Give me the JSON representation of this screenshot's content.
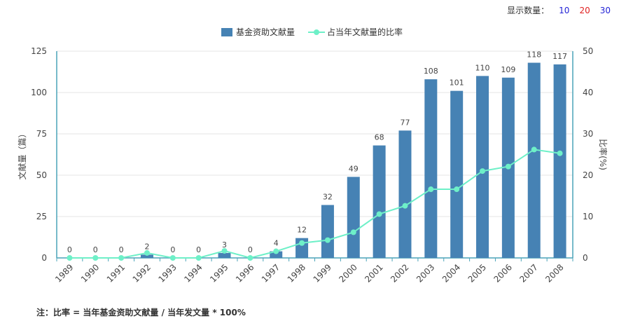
{
  "display_count": {
    "label": "显示数量：",
    "options": [
      "10",
      "20",
      "30"
    ]
  },
  "footnote": "注：比率 = 当年基金资助文献量 / 当年发文量 * 100%",
  "colors": {
    "bar": "#4682b4",
    "line": "#6ef0c8",
    "axis": "#4aa3b8",
    "grid": "#e6e6e6"
  },
  "chart_data": {
    "type": "bar",
    "categories": [
      "1989",
      "1990",
      "1991",
      "1992",
      "1993",
      "1994",
      "1995",
      "1996",
      "1997",
      "1998",
      "1999",
      "2000",
      "2001",
      "2002",
      "2003",
      "2004",
      "2005",
      "2006",
      "2007",
      "2008"
    ],
    "series": [
      {
        "name": "基金资助文献量",
        "type": "bar",
        "axis": "left",
        "values": [
          0,
          0,
          0,
          2,
          0,
          0,
          3,
          0,
          4,
          12,
          32,
          49,
          68,
          77,
          108,
          101,
          110,
          109,
          118,
          117
        ],
        "labels": [
          "0",
          "0",
          "0",
          "2",
          "0",
          "0",
          "3",
          "0",
          "4",
          "12",
          "32",
          "49",
          "68",
          "77",
          "108",
          "101",
          "110",
          "109",
          "118",
          "117"
        ]
      },
      {
        "name": "占当年文献量的比率",
        "type": "line",
        "axis": "right",
        "values": [
          0,
          0,
          0,
          1.2,
          0,
          0,
          1.7,
          0,
          1.6,
          3.6,
          4.3,
          6.2,
          10.6,
          12.6,
          16.6,
          16.6,
          21,
          22.1,
          26.2,
          25.3
        ]
      }
    ],
    "ylabel": "文献量（篇）",
    "y2label": "比率(%)",
    "ylim": [
      0,
      125
    ],
    "yticks": [
      "0",
      "25",
      "50",
      "75",
      "100",
      "125"
    ],
    "y2lim": [
      0,
      50
    ],
    "y2ticks": [
      "0",
      "10",
      "20",
      "30",
      "40",
      "50"
    ],
    "grid": true,
    "legend": "top-center"
  }
}
